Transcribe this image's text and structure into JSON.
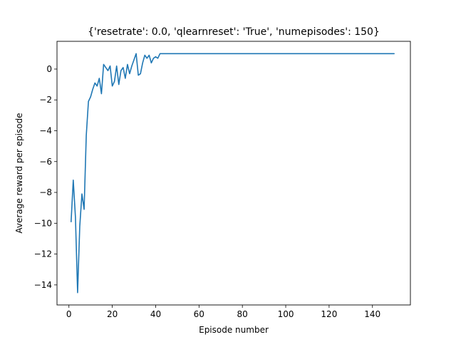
{
  "chart_data": {
    "type": "line",
    "title": "{'resetrate': 0.0, 'qlearnreset': 'True', 'numepisodes': 150}",
    "xlabel": "Episode number",
    "ylabel": "Average reward per episode",
    "xlim": [
      -5.5,
      157.5
    ],
    "ylim": [
      -15.3,
      1.8
    ],
    "xticks": [
      0,
      20,
      40,
      60,
      80,
      100,
      120,
      140
    ],
    "yticks": [
      -14,
      -12,
      -10,
      -8,
      -6,
      -4,
      -2,
      0
    ],
    "ytick_labels": [
      "−14",
      "−12",
      "−10",
      "−8",
      "−6",
      "−4",
      "−2",
      "0"
    ],
    "grid": false,
    "colors": {
      "line": "#1f77b4"
    },
    "series": [
      {
        "x": [
          1,
          2,
          3,
          4,
          5,
          6,
          7,
          8,
          9,
          10,
          11,
          12,
          13,
          14,
          15,
          16,
          17,
          18,
          19,
          20,
          21,
          22,
          23,
          24,
          25,
          26,
          27,
          28,
          29,
          30,
          31,
          32,
          33,
          34,
          35,
          36,
          37,
          38,
          39,
          40,
          41,
          42,
          43,
          150
        ],
        "y": [
          -9.9,
          -7.2,
          -9.6,
          -14.5,
          -10.2,
          -8.1,
          -9.1,
          -4.3,
          -2.1,
          -1.8,
          -1.3,
          -0.9,
          -1.1,
          -0.6,
          -1.6,
          0.3,
          0.1,
          -0.1,
          0.2,
          -1.1,
          -0.8,
          0.2,
          -1.0,
          -0.1,
          0.1,
          -0.6,
          0.3,
          -0.3,
          0.2,
          0.6,
          1.0,
          -0.4,
          -0.3,
          0.4,
          0.9,
          0.7,
          0.9,
          0.4,
          0.7,
          0.8,
          0.7,
          1.0,
          1.0,
          1.0
        ]
      }
    ]
  }
}
